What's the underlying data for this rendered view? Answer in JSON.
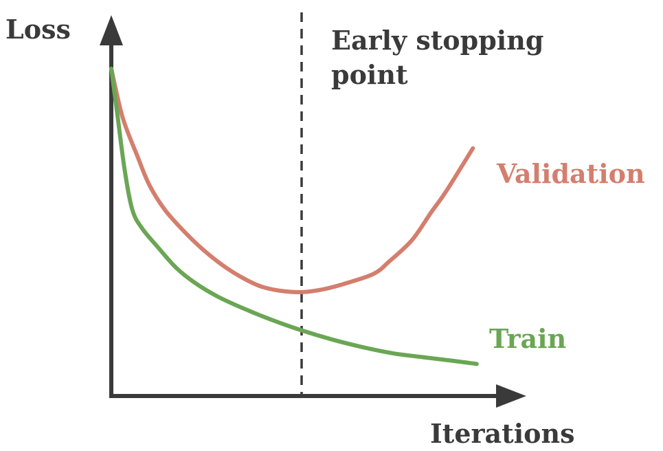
{
  "chart_data": {
    "type": "line",
    "xlabel": "Iterations",
    "ylabel": "Loss",
    "annotation": {
      "label_line1": "Early stopping",
      "label_line2": "point",
      "x": 0.5
    },
    "xlim": [
      0,
      1
    ],
    "ylim": [
      0,
      1
    ],
    "series": [
      {
        "name": "Validation",
        "color": "#d47e6e",
        "points": [
          [
            0.0,
            1.0
          ],
          [
            0.03,
            0.84
          ],
          [
            0.07,
            0.71
          ],
          [
            0.1,
            0.62
          ],
          [
            0.14,
            0.54
          ],
          [
            0.19,
            0.47
          ],
          [
            0.24,
            0.41
          ],
          [
            0.29,
            0.36
          ],
          [
            0.34,
            0.32
          ],
          [
            0.39,
            0.29
          ],
          [
            0.44,
            0.275
          ],
          [
            0.5,
            0.27
          ],
          [
            0.56,
            0.28
          ],
          [
            0.62,
            0.3
          ],
          [
            0.69,
            0.33
          ],
          [
            0.73,
            0.37
          ],
          [
            0.79,
            0.44
          ],
          [
            0.84,
            0.53
          ],
          [
            0.88,
            0.6
          ],
          [
            0.95,
            0.74
          ]
        ]
      },
      {
        "name": "Train",
        "color": "#6aa654",
        "points": [
          [
            0.0,
            1.0
          ],
          [
            0.015,
            0.86
          ],
          [
            0.035,
            0.67
          ],
          [
            0.055,
            0.54
          ],
          [
            0.08,
            0.48
          ],
          [
            0.12,
            0.42
          ],
          [
            0.17,
            0.35
          ],
          [
            0.22,
            0.3
          ],
          [
            0.28,
            0.255
          ],
          [
            0.35,
            0.215
          ],
          [
            0.42,
            0.18
          ],
          [
            0.5,
            0.145
          ],
          [
            0.58,
            0.115
          ],
          [
            0.66,
            0.09
          ],
          [
            0.74,
            0.07
          ],
          [
            0.82,
            0.057
          ],
          [
            0.9,
            0.045
          ],
          [
            0.96,
            0.035
          ]
        ]
      }
    ],
    "grid": false,
    "legend": "inline labels at line ends"
  }
}
